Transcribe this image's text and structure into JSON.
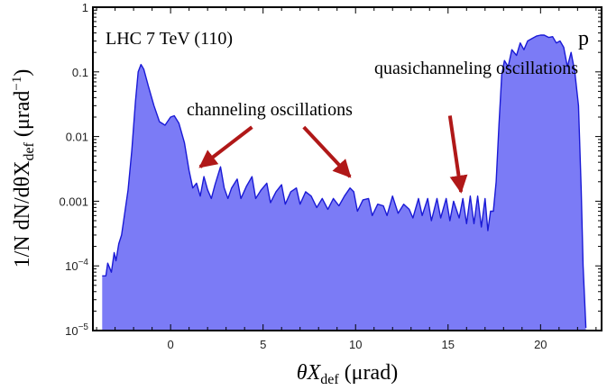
{
  "chart_data": {
    "type": "area",
    "title_in_plot": "LHC 7 TeV (110)",
    "corner_label": "p",
    "xlabel": "θX_def (μrad)",
    "ylabel": "1/N dN/dθX_def (μrad⁻¹)",
    "xlabel_parts": {
      "main": "θX",
      "sub": "def",
      "tail": " (μrad)"
    },
    "ylabel_parts": {
      "pre": "1/N dN/dθX",
      "sub": "def",
      "post": " (μrad",
      "sup": "−1",
      "close": ")"
    },
    "xlim": [
      -4.2,
      23.3
    ],
    "ylim": [
      1e-05,
      1
    ],
    "yscale": "log",
    "grid": false,
    "fill_color": "#7b7bf6",
    "line_color": "#1a1ad6",
    "x_ticks": [
      {
        "value": 0,
        "label": "0"
      },
      {
        "value": 5,
        "label": "5"
      },
      {
        "value": 10,
        "label": "10"
      },
      {
        "value": 15,
        "label": "15"
      },
      {
        "value": 20,
        "label": "20"
      }
    ],
    "y_ticks": [
      {
        "value": 1,
        "label": "1"
      },
      {
        "value": 0.1,
        "label": "0.1"
      },
      {
        "value": 0.01,
        "label": "0.01"
      },
      {
        "value": 0.001,
        "label": "0.001"
      },
      {
        "value": 0.0001,
        "label": "10",
        "sup": "−4"
      },
      {
        "value": 1e-05,
        "label": "10",
        "sup": "−5"
      }
    ],
    "annotations": [
      {
        "text": "quasichanneling oscillations",
        "x": 15.5,
        "y": 0.025
      },
      {
        "text": "channeling oscillations",
        "x": 6.8,
        "y": 0.0055
      }
    ],
    "arrows": [
      {
        "from": [
          15.1,
          0.021
        ],
        "to": [
          15.7,
          0.0014
        ],
        "color": "#b01818"
      },
      {
        "from": [
          4.4,
          0.014
        ],
        "to": [
          1.6,
          0.0034
        ],
        "color": "#b01818"
      },
      {
        "from": [
          7.2,
          0.014
        ],
        "to": [
          9.7,
          0.0024
        ],
        "color": "#b01818"
      }
    ],
    "series": [
      {
        "values": [
          [
            -3.7,
            7e-05
          ],
          [
            -3.5,
            7e-05
          ],
          [
            -3.4,
            0.00011
          ],
          [
            -3.2,
            8e-05
          ],
          [
            -3.05,
            0.00016
          ],
          [
            -2.95,
            0.00012
          ],
          [
            -2.8,
            0.00022
          ],
          [
            -2.65,
            0.0003
          ],
          [
            -2.5,
            0.0006
          ],
          [
            -2.3,
            0.0015
          ],
          [
            -2.1,
            0.006
          ],
          [
            -1.9,
            0.035
          ],
          [
            -1.75,
            0.1
          ],
          [
            -1.6,
            0.13
          ],
          [
            -1.45,
            0.11
          ],
          [
            -1.2,
            0.06
          ],
          [
            -0.9,
            0.03
          ],
          [
            -0.6,
            0.017
          ],
          [
            -0.3,
            0.015
          ],
          [
            0.0,
            0.02
          ],
          [
            0.2,
            0.021
          ],
          [
            0.45,
            0.016
          ],
          [
            0.75,
            0.008
          ],
          [
            1.0,
            0.003
          ],
          [
            1.2,
            0.0016
          ],
          [
            1.4,
            0.0019
          ],
          [
            1.6,
            0.0012
          ],
          [
            1.8,
            0.0024
          ],
          [
            2.0,
            0.0015
          ],
          [
            2.2,
            0.0011
          ],
          [
            2.4,
            0.0018
          ],
          [
            2.7,
            0.0034
          ],
          [
            2.9,
            0.0016
          ],
          [
            3.1,
            0.0011
          ],
          [
            3.3,
            0.0016
          ],
          [
            3.6,
            0.0022
          ],
          [
            3.8,
            0.0011
          ],
          [
            4.1,
            0.0017
          ],
          [
            4.4,
            0.0024
          ],
          [
            4.6,
            0.0011
          ],
          [
            4.9,
            0.0015
          ],
          [
            5.2,
            0.0019
          ],
          [
            5.4,
            0.00095
          ],
          [
            5.7,
            0.0014
          ],
          [
            6.0,
            0.0018
          ],
          [
            6.2,
            0.0009
          ],
          [
            6.5,
            0.0014
          ],
          [
            6.8,
            0.0016
          ],
          [
            7.0,
            0.0009
          ],
          [
            7.3,
            0.0014
          ],
          [
            7.6,
            0.0012
          ],
          [
            7.9,
            0.0008
          ],
          [
            8.2,
            0.0011
          ],
          [
            8.5,
            0.00075
          ],
          [
            8.8,
            0.0011
          ],
          [
            9.1,
            0.00085
          ],
          [
            9.4,
            0.0012
          ],
          [
            9.7,
            0.0016
          ],
          [
            9.9,
            0.0014
          ],
          [
            10.1,
            0.0007
          ],
          [
            10.4,
            0.00105
          ],
          [
            10.7,
            0.0011
          ],
          [
            10.9,
            0.0006
          ],
          [
            11.2,
            0.0009
          ],
          [
            11.5,
            0.00085
          ],
          [
            11.7,
            0.0006
          ],
          [
            12.0,
            0.0012
          ],
          [
            12.3,
            0.00065
          ],
          [
            12.6,
            0.0009
          ],
          [
            12.9,
            0.00075
          ],
          [
            13.1,
            0.00055
          ],
          [
            13.4,
            0.0011
          ],
          [
            13.6,
            0.0006
          ],
          [
            13.9,
            0.0011
          ],
          [
            14.1,
            0.0005
          ],
          [
            14.4,
            0.0011
          ],
          [
            14.6,
            0.00055
          ],
          [
            14.9,
            0.0011
          ],
          [
            15.1,
            0.0005
          ],
          [
            15.3,
            0.001
          ],
          [
            15.6,
            0.00055
          ],
          [
            15.8,
            0.0011
          ],
          [
            16.0,
            0.00045
          ],
          [
            16.2,
            0.0012
          ],
          [
            16.4,
            0.00045
          ],
          [
            16.6,
            0.0012
          ],
          [
            16.8,
            0.0004
          ],
          [
            17.0,
            0.0011
          ],
          [
            17.15,
            0.00035
          ],
          [
            17.3,
            0.0007
          ],
          [
            17.45,
            0.0007
          ],
          [
            17.6,
            0.002
          ],
          [
            17.75,
            0.015
          ],
          [
            17.9,
            0.09
          ],
          [
            18.05,
            0.15
          ],
          [
            18.25,
            0.12
          ],
          [
            18.45,
            0.22
          ],
          [
            18.7,
            0.18
          ],
          [
            18.9,
            0.28
          ],
          [
            19.1,
            0.22
          ],
          [
            19.3,
            0.3
          ],
          [
            19.55,
            0.33
          ],
          [
            19.8,
            0.36
          ],
          [
            20.0,
            0.37
          ],
          [
            20.2,
            0.37
          ],
          [
            20.45,
            0.34
          ],
          [
            20.65,
            0.35
          ],
          [
            20.85,
            0.28
          ],
          [
            21.05,
            0.3
          ],
          [
            21.25,
            0.24
          ],
          [
            21.45,
            0.12
          ],
          [
            21.65,
            0.2
          ],
          [
            21.85,
            0.1
          ],
          [
            22.05,
            0.03
          ],
          [
            22.2,
            0.0015
          ],
          [
            22.3,
            0.0001
          ],
          [
            22.45,
            1.1e-05
          ]
        ]
      }
    ]
  }
}
